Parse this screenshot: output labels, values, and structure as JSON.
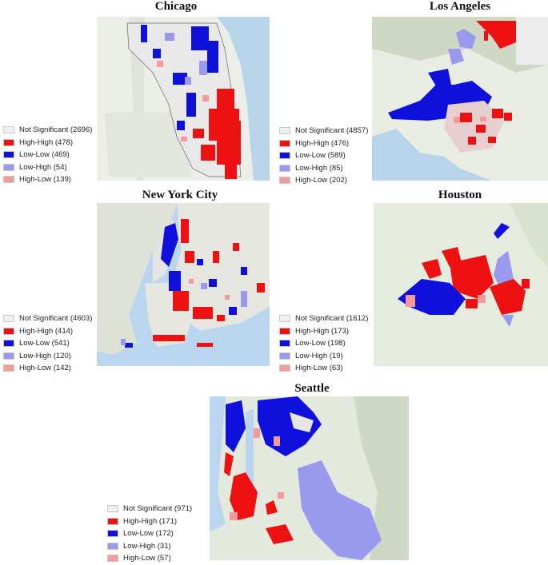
{
  "colors": {
    "not_significant": "#f0f0f0",
    "high_high": "#ee1111",
    "low_low": "#1010dd",
    "low_high": "#9999ee",
    "high_low": "#f59a9a"
  },
  "panels": [
    {
      "id": "chicago",
      "title": "Chicago",
      "legend": [
        "Not Significant (2696)",
        "High-High (478)",
        "Low-Low (469)",
        "Low-High (54)",
        "High-Low (139)"
      ]
    },
    {
      "id": "los-angeles",
      "title": "Los Angeles",
      "legend": [
        "Not Significant (4857)",
        "High-High (476)",
        "Low-Low (589)",
        "Low-High (85)",
        "High-Low (202)"
      ]
    },
    {
      "id": "new-york-city",
      "title": "New York City",
      "legend": [
        "Not Significant (4603)",
        "High-High (414)",
        "Low-Low (541)",
        "Low-High (120)",
        "High-Low (142)"
      ]
    },
    {
      "id": "houston",
      "title": "Houston",
      "legend": [
        "Not Significant (1612)",
        "High-High (173)",
        "Low-Low (198)",
        "Low-High (19)",
        "High-Low (63)"
      ]
    },
    {
      "id": "seattle",
      "title": "Seattle",
      "legend": [
        "Not Significant (971)",
        "High-High (171)",
        "Low-Low (172)",
        "Low-High (31)",
        "High-Low (57)"
      ]
    }
  ]
}
